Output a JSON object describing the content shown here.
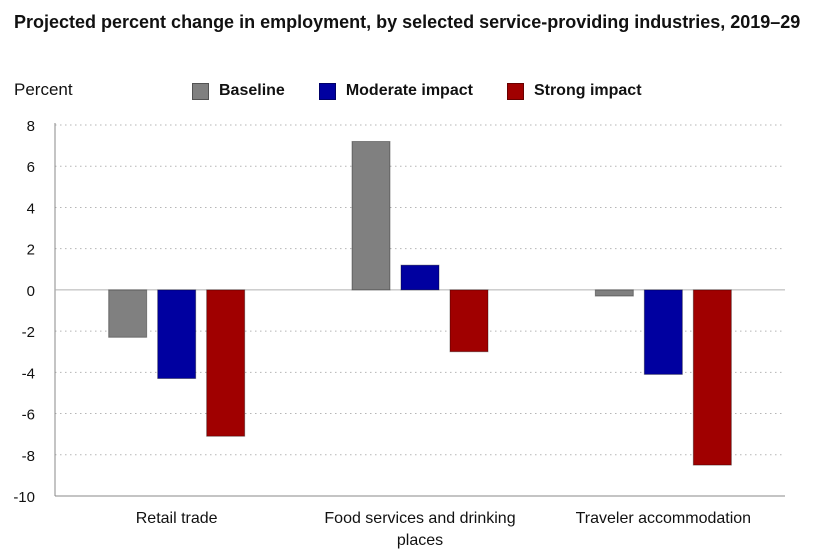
{
  "title": "Projected percent change in employment, by selected service-providing industries, 2019–29",
  "colors": {
    "Baseline": "#808080",
    "Moderate impact": "#0000a0",
    "Strong impact": "#a00000"
  },
  "chart_data": {
    "type": "bar",
    "title": "Projected percent change in employment, by selected service-providing industries, 2019–29",
    "xlabel": "",
    "ylabel": "Percent",
    "ylim": [
      -10,
      8
    ],
    "yticks": [
      8,
      6,
      4,
      2,
      0,
      -2,
      -4,
      -6,
      -8,
      -10
    ],
    "grid": true,
    "legend_position": "top",
    "categories": [
      [
        "Retail trade"
      ],
      [
        "Food services and drinking",
        "places"
      ],
      [
        "Traveler accommodation"
      ]
    ],
    "series": [
      {
        "name": "Baseline",
        "values": [
          -2.3,
          7.2,
          -0.3
        ]
      },
      {
        "name": "Moderate impact",
        "values": [
          -4.3,
          1.2,
          -4.1
        ]
      },
      {
        "name": "Strong impact",
        "values": [
          -7.1,
          -3.0,
          -8.5
        ]
      }
    ]
  }
}
